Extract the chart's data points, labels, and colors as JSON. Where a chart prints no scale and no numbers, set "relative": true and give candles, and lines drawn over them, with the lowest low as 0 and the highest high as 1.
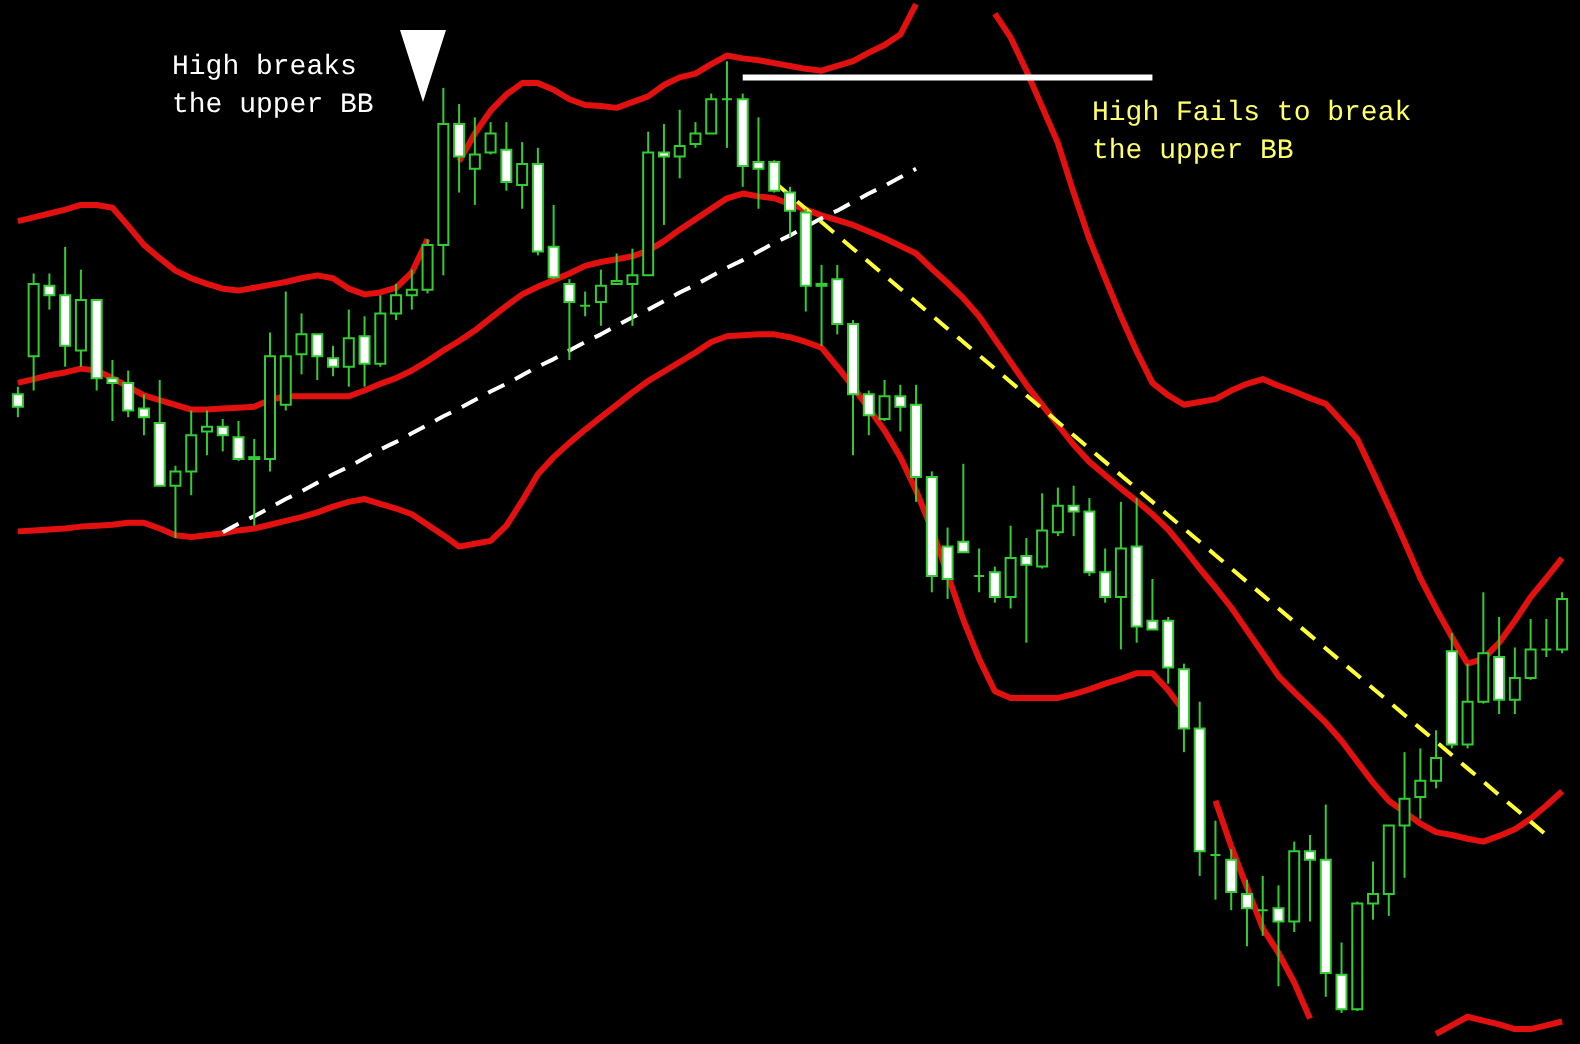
{
  "chart_data": {
    "type": "candlestick",
    "relative": true,
    "color": "#33cc33",
    "categories": [
      null,
      null,
      null,
      null,
      null,
      null,
      null,
      null,
      null,
      null,
      null,
      null,
      null,
      null,
      null,
      null,
      null,
      null,
      null,
      null,
      null,
      null,
      null,
      null,
      null,
      null,
      null,
      null,
      null,
      null,
      null,
      null,
      null,
      null,
      null,
      null,
      null,
      null,
      null,
      null,
      null,
      null,
      null,
      null,
      null,
      null,
      null,
      null,
      null,
      null,
      null,
      null,
      null,
      null,
      null,
      null,
      null,
      null,
      null,
      null,
      null,
      null,
      null,
      null,
      null,
      null,
      null,
      null,
      null,
      null,
      null,
      null,
      null,
      null,
      null,
      null,
      null,
      null,
      null,
      null,
      null,
      null,
      null,
      null,
      null,
      null,
      null,
      null,
      null,
      null,
      null,
      null,
      null,
      null,
      null,
      null,
      null,
      null,
      null
    ],
    "ohlc": [
      [
        0.65,
        0.658,
        0.626,
        0.637
      ],
      [
        0.69,
        0.777,
        0.654,
        0.766
      ],
      [
        0.764,
        0.777,
        0.739,
        0.754
      ],
      [
        0.754,
        0.805,
        0.679,
        0.701
      ],
      [
        0.696,
        0.781,
        0.679,
        0.749
      ],
      [
        0.749,
        0.749,
        0.654,
        0.667
      ],
      [
        0.667,
        0.686,
        0.622,
        0.662
      ],
      [
        0.662,
        0.675,
        0.626,
        0.633
      ],
      [
        0.635,
        0.65,
        0.607,
        0.626
      ],
      [
        0.62,
        0.665,
        0.554,
        0.554
      ],
      [
        0.554,
        0.575,
        0.499,
        0.569
      ],
      [
        0.569,
        0.633,
        0.544,
        0.607
      ],
      [
        0.611,
        0.633,
        0.586,
        0.616
      ],
      [
        0.616,
        0.624,
        0.59,
        0.607
      ],
      [
        0.605,
        0.622,
        0.58,
        0.582
      ],
      [
        0.582,
        0.603,
        0.512,
        0.584
      ],
      [
        0.582,
        0.715,
        0.569,
        0.69
      ],
      [
        0.639,
        0.758,
        0.633,
        0.69
      ],
      [
        0.692,
        0.735,
        0.671,
        0.713
      ],
      [
        0.713,
        0.713,
        0.665,
        0.69
      ],
      [
        0.688,
        0.701,
        0.669,
        0.679
      ],
      [
        0.679,
        0.739,
        0.658,
        0.709
      ],
      [
        0.711,
        0.732,
        0.658,
        0.682
      ],
      [
        0.682,
        0.754,
        0.679,
        0.735
      ],
      [
        0.735,
        0.766,
        0.728,
        0.754
      ],
      [
        0.754,
        0.781,
        0.739,
        0.76
      ],
      [
        0.76,
        0.813,
        0.756,
        0.807
      ],
      [
        0.807,
        0.972,
        0.775,
        0.934
      ],
      [
        0.934,
        0.955,
        0.862,
        0.9
      ],
      [
        0.887,
        0.941,
        0.849,
        0.902
      ],
      [
        0.904,
        0.936,
        0.902,
        0.924
      ],
      [
        0.907,
        0.936,
        0.864,
        0.873
      ],
      [
        0.87,
        0.915,
        0.845,
        0.892
      ],
      [
        0.892,
        0.909,
        0.796,
        0.8
      ],
      [
        0.805,
        0.849,
        0.771,
        0.773
      ],
      [
        0.766,
        0.771,
        0.686,
        0.747
      ],
      [
        0.743,
        0.758,
        0.732,
        0.743
      ],
      [
        0.747,
        0.781,
        0.722,
        0.764
      ],
      [
        0.766,
        0.798,
        0.766,
        0.769
      ],
      [
        0.766,
        0.803,
        0.722,
        0.775
      ],
      [
        0.775,
        0.926,
        0.775,
        0.904
      ],
      [
        0.904,
        0.934,
        0.828,
        0.9
      ],
      [
        0.9,
        0.949,
        0.877,
        0.911
      ],
      [
        0.913,
        0.936,
        0.909,
        0.924
      ],
      [
        0.924,
        0.966,
        0.924,
        0.96
      ],
      [
        0.96,
        1,
        0.909,
        0.96
      ],
      [
        0.96,
        0.966,
        0.868,
        0.89
      ],
      [
        0.894,
        0.941,
        0.845,
        0.887
      ],
      [
        0.894,
        0.896,
        0.862,
        0.864
      ],
      [
        0.862,
        0.868,
        0.815,
        0.843
      ],
      [
        0.841,
        0.845,
        0.737,
        0.764
      ],
      [
        0.766,
        0.786,
        0.701,
        0.764
      ],
      [
        0.771,
        0.786,
        0.713,
        0.724
      ],
      [
        0.724,
        0.728,
        0.586,
        0.65
      ],
      [
        0.65,
        0.654,
        0.607,
        0.628
      ],
      [
        0.624,
        0.665,
        0.622,
        0.648
      ],
      [
        0.648,
        0.66,
        0.611,
        0.637
      ],
      [
        0.639,
        0.66,
        0.537,
        0.563
      ],
      [
        0.563,
        0.569,
        0.442,
        0.459
      ],
      [
        0.49,
        0.51,
        0.435,
        0.456
      ],
      [
        0.495,
        0.577,
        0.484,
        0.484
      ],
      [
        0.459,
        0.488,
        0.442,
        0.459
      ],
      [
        0.463,
        0.469,
        0.431,
        0.437
      ],
      [
        0.437,
        0.512,
        0.425,
        0.478
      ],
      [
        0.48,
        0.499,
        0.389,
        0.471
      ],
      [
        0.469,
        0.546,
        0.467,
        0.507
      ],
      [
        0.505,
        0.552,
        0.501,
        0.533
      ],
      [
        0.533,
        0.554,
        0.501,
        0.527
      ],
      [
        0.527,
        0.541,
        0.459,
        0.463
      ],
      [
        0.463,
        0.488,
        0.431,
        0.437
      ],
      [
        0.437,
        0.537,
        0.382,
        0.488
      ],
      [
        0.49,
        0.541,
        0.389,
        0.406
      ],
      [
        0.412,
        0.456,
        0.403,
        0.403
      ],
      [
        0.412,
        0.416,
        0.346,
        0.363
      ],
      [
        0.361,
        0.367,
        0.274,
        0.299
      ],
      [
        0.299,
        0.327,
        0.144,
        0.17
      ],
      [
        0.166,
        0.202,
        0.119,
        0.166
      ],
      [
        0.161,
        0.172,
        0.108,
        0.127
      ],
      [
        0.125,
        0.14,
        0.07,
        0.11
      ],
      [
        0.108,
        0.144,
        0.081,
        0.108
      ],
      [
        0.11,
        0.134,
        0.028,
        0.096
      ],
      [
        0.096,
        0.18,
        0.085,
        0.17
      ],
      [
        0.17,
        0.187,
        0.096,
        0.161
      ],
      [
        0.161,
        0.219,
        0.017,
        0.042
      ],
      [
        0.04,
        0.074,
        0,
        0.004
      ],
      [
        0.004,
        0.117,
        0.002,
        0.115
      ],
      [
        0.115,
        0.159,
        0.098,
        0.125
      ],
      [
        0.125,
        0.197,
        0.102,
        0.197
      ],
      [
        0.197,
        0.274,
        0.142,
        0.225
      ],
      [
        0.227,
        0.278,
        0.204,
        0.244
      ],
      [
        0.244,
        0.297,
        0.236,
        0.268
      ],
      [
        0.38,
        0.399,
        0.278,
        0.282
      ],
      [
        0.282,
        0.367,
        0.278,
        0.327
      ],
      [
        0.327,
        0.442,
        0.325,
        0.378
      ],
      [
        0.374,
        0.416,
        0.314,
        0.329
      ],
      [
        0.329,
        0.384,
        0.314,
        0.352
      ],
      [
        0.352,
        0.414,
        0.35,
        0.382
      ],
      [
        0.382,
        0.414,
        0.374,
        0.382
      ],
      [
        0.382,
        0.442,
        0.378,
        0.435
      ]
    ],
    "series": [
      {
        "type": "line",
        "color": "#e31010",
        "values": [
          0.832,
          0.836,
          0.84,
          0.844,
          0.849,
          0.849,
          0.846,
          0.827,
          0.807,
          0.793,
          0.78,
          0.772,
          0.766,
          0.761,
          0.759,
          0.762,
          0.765,
          0.768,
          0.772,
          0.775,
          0.772,
          0.761,
          0.755,
          0.757,
          0.762,
          0.778,
          0.813,
          null,
          0.895,
          0.924,
          0.948,
          0.965,
          0.977,
          0.977,
          0.97,
          0.96,
          0.954,
          0.953,
          0.951,
          0.957,
          0.963,
          0.975,
          0.983,
          0.987,
          0.997,
          1.006,
          1.003,
          1.001,
          0.998,
          0.995,
          0.992,
          0.99,
          0.995,
          1,
          1.009,
          1.017,
          1.028,
          1.06,
          null,
          null,
          null,
          null,
          1.05,
          1.025,
          0.99,
          0.952,
          0.914,
          0.862,
          0.813,
          0.772,
          0.732,
          0.695,
          0.662,
          0.649,
          0.639,
          0.642,
          0.645,
          0.654,
          0.661,
          0.666,
          0.659,
          0.653,
          0.646,
          0.64,
          0.622,
          0.603,
          0.568,
          0.532,
          0.495,
          0.457,
          0.425,
          0.395,
          0.367,
          0.372,
          0.389,
          0.412,
          0.437,
          0.457,
          0.478
        ]
      },
      {
        "type": "line",
        "color": "#e31010",
        "values": [
          0.662,
          0.666,
          0.67,
          0.673,
          0.677,
          0.675,
          0.667,
          0.658,
          0.649,
          0.644,
          0.639,
          0.634,
          0.634,
          0.635,
          0.636,
          0.637,
          0.644,
          0.648,
          0.648,
          0.648,
          0.648,
          0.648,
          0.654,
          0.661,
          0.667,
          0.675,
          0.685,
          0.696,
          0.706,
          0.717,
          0.73,
          0.743,
          0.755,
          0.763,
          0.77,
          0.777,
          0.785,
          0.789,
          0.792,
          0.795,
          0.801,
          0.811,
          0.823,
          0.834,
          0.845,
          0.856,
          0.861,
          0.858,
          0.856,
          0.85,
          0.844,
          0.838,
          0.833,
          0.828,
          0.821,
          0.814,
          0.806,
          0.798,
          0.782,
          0.767,
          0.751,
          0.732,
          0.708,
          0.684,
          0.66,
          0.639,
          0.618,
          0.597,
          0.579,
          0.565,
          0.551,
          0.538,
          0.524,
          0.508,
          0.488,
          0.467,
          0.447,
          0.426,
          0.402,
          0.378,
          0.354,
          0.337,
          0.321,
          0.305,
          0.286,
          0.264,
          0.242,
          0.223,
          0.211,
          0.199,
          0.19,
          0.187,
          0.183,
          0.18,
          0.186,
          0.193,
          0.204,
          0.218,
          0.233
        ]
      },
      {
        "type": "line",
        "color": "#e31010",
        "values": [
          0.506,
          0.507,
          0.508,
          0.509,
          0.511,
          0.512,
          0.513,
          0.515,
          0.515,
          0.509,
          0.502,
          0.5,
          0.502,
          0.504,
          0.507,
          0.509,
          0.513,
          0.517,
          0.521,
          0.526,
          0.532,
          0.537,
          0.54,
          0.535,
          0.53,
          0.524,
          0.513,
          0.502,
          0.49,
          0.493,
          0.496,
          0.512,
          0.538,
          0.566,
          0.584,
          0.599,
          0.613,
          0.626,
          0.639,
          0.652,
          0.664,
          0.674,
          0.684,
          0.694,
          0.705,
          0.711,
          0.712,
          0.713,
          0.713,
          0.71,
          0.705,
          0.699,
          0.679,
          0.658,
          0.635,
          0.612,
          0.584,
          0.549,
          0.508,
          0.461,
          0.413,
          0.372,
          0.338,
          0.331,
          0.331,
          0.331,
          0.331,
          0.335,
          0.34,
          0.346,
          0.351,
          0.357,
          0.357,
          0.339,
          0.317,
          null,
          0.223,
          0.175,
          0.132,
          0.089,
          0.063,
          0.032,
          -0.006,
          null,
          null,
          null,
          null,
          null,
          null,
          null,
          -0.022,
          -0.013,
          -0.004,
          -0.008,
          -0.012,
          -0.017,
          -0.017,
          -0.013,
          -0.009
        ]
      },
      {
        "type": "line",
        "color": "#ffffff",
        "line_style": "dashed",
        "values": [
          null,
          null,
          null,
          null,
          null,
          null,
          null,
          null,
          null,
          null,
          null,
          null,
          null,
          0.505,
          0.514,
          0.522,
          0.531,
          0.54,
          0.548,
          0.557,
          0.566,
          0.574,
          0.583,
          0.592,
          0.6,
          0.609,
          0.618,
          0.627,
          0.635,
          0.644,
          0.653,
          0.661,
          0.67,
          0.679,
          0.687,
          0.696,
          0.705,
          0.713,
          0.722,
          0.731,
          0.739,
          0.748,
          0.757,
          0.765,
          0.774,
          0.783,
          0.791,
          0.8,
          0.809,
          0.817,
          0.826,
          0.835,
          0.843,
          0.852,
          0.861,
          0.869,
          0.878,
          0.887,
          null,
          null,
          null,
          null,
          null,
          null,
          null,
          null,
          null,
          null,
          null,
          null,
          null,
          null,
          null,
          null,
          null,
          null,
          null,
          null,
          null,
          null,
          null,
          null,
          null,
          null,
          null,
          null,
          null,
          null,
          null,
          null,
          null,
          null,
          null,
          null,
          null,
          null,
          null,
          null,
          null
        ]
      },
      {
        "type": "line",
        "color": "#ffff33",
        "line_style": "dashed",
        "values": [
          null,
          null,
          null,
          null,
          null,
          null,
          null,
          null,
          null,
          null,
          null,
          null,
          null,
          null,
          null,
          null,
          null,
          null,
          null,
          null,
          null,
          null,
          null,
          null,
          null,
          null,
          null,
          null,
          null,
          null,
          null,
          null,
          null,
          null,
          null,
          null,
          null,
          null,
          null,
          null,
          null,
          null,
          null,
          null,
          null,
          null,
          null,
          null,
          0.873,
          0.859,
          0.845,
          0.831,
          0.817,
          0.803,
          0.789,
          0.775,
          0.761,
          0.747,
          0.733,
          0.719,
          0.705,
          0.691,
          0.677,
          0.663,
          0.649,
          0.635,
          0.621,
          0.607,
          0.593,
          0.579,
          0.565,
          0.551,
          0.537,
          0.523,
          0.509,
          0.495,
          0.481,
          0.467,
          0.453,
          0.439,
          0.425,
          0.411,
          0.397,
          0.383,
          0.369,
          0.355,
          0.341,
          0.327,
          0.313,
          0.299,
          0.285,
          0.271,
          0.257,
          0.243,
          0.229,
          0.215,
          0.201,
          0.187,
          null
        ]
      },
      {
        "type": "line",
        "color": "#ffffff",
        "values": [
          null,
          null,
          null,
          null,
          null,
          null,
          null,
          null,
          null,
          null,
          null,
          null,
          null,
          null,
          null,
          null,
          null,
          null,
          null,
          null,
          null,
          null,
          null,
          null,
          null,
          null,
          null,
          null,
          null,
          null,
          null,
          null,
          null,
          null,
          null,
          null,
          null,
          null,
          null,
          null,
          null,
          null,
          null,
          null,
          null,
          null,
          0.983,
          0.983,
          0.983,
          0.983,
          0.983,
          0.983,
          0.983,
          0.983,
          0.983,
          0.983,
          0.983,
          0.983,
          0.983,
          0.983,
          0.983,
          0.983,
          0.983,
          0.983,
          0.983,
          0.983,
          0.983,
          0.983,
          0.983,
          0.983,
          0.983,
          0.983,
          0.983,
          null,
          null,
          null,
          null,
          null,
          null,
          null,
          null,
          null,
          null,
          null,
          null,
          null,
          null,
          null,
          null,
          null,
          null,
          null,
          null,
          null,
          null,
          null,
          null,
          null,
          null
        ]
      }
    ],
    "annotations": [
      "High breaks the upper BB",
      "High Fails to break the upper BB"
    ]
  }
}
